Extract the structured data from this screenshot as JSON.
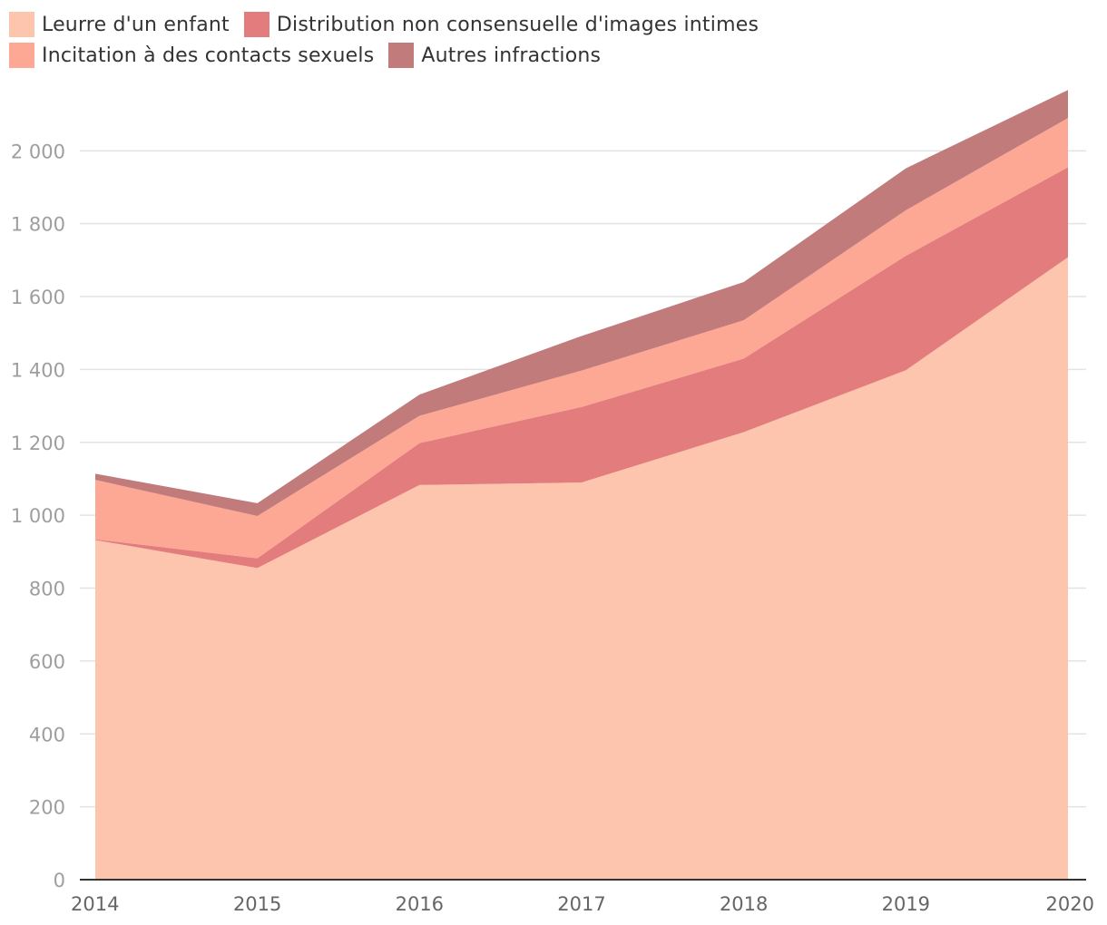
{
  "chart_data": {
    "type": "area",
    "stacked": true,
    "title": "",
    "xlabel": "",
    "ylabel": "",
    "x": [
      "2014",
      "2015",
      "2016",
      "2017",
      "2018",
      "2019",
      "2020"
    ],
    "ylim": [
      0,
      2170
    ],
    "yticks": [
      0,
      200,
      400,
      600,
      800,
      1000,
      1200,
      1400,
      1600,
      1800,
      2000
    ],
    "ytick_labels": [
      "0",
      "200",
      "400",
      "600",
      "800",
      "1 000",
      "1 200",
      "1 400",
      "1 600",
      "1 800",
      "2 000"
    ],
    "grid": true,
    "legend_position": "top-left",
    "series": [
      {
        "name": "Leurre d'un enfant",
        "color": "#fdc5ad",
        "values": [
          932,
          855,
          1083,
          1090,
          1228,
          1398,
          1708
        ]
      },
      {
        "name": "Distribution non consensuelle d'images intimes",
        "color": "#e37c7d",
        "values": [
          2,
          27,
          115,
          207,
          202,
          314,
          247
        ]
      },
      {
        "name": "Incitation à des contacts sexuels",
        "color": "#fda795",
        "values": [
          163,
          116,
          75,
          100,
          105,
          125,
          135
        ]
      },
      {
        "name": "Autres infractions",
        "color": "#c17b7b",
        "values": [
          17,
          35,
          58,
          95,
          105,
          115,
          77
        ]
      }
    ]
  }
}
